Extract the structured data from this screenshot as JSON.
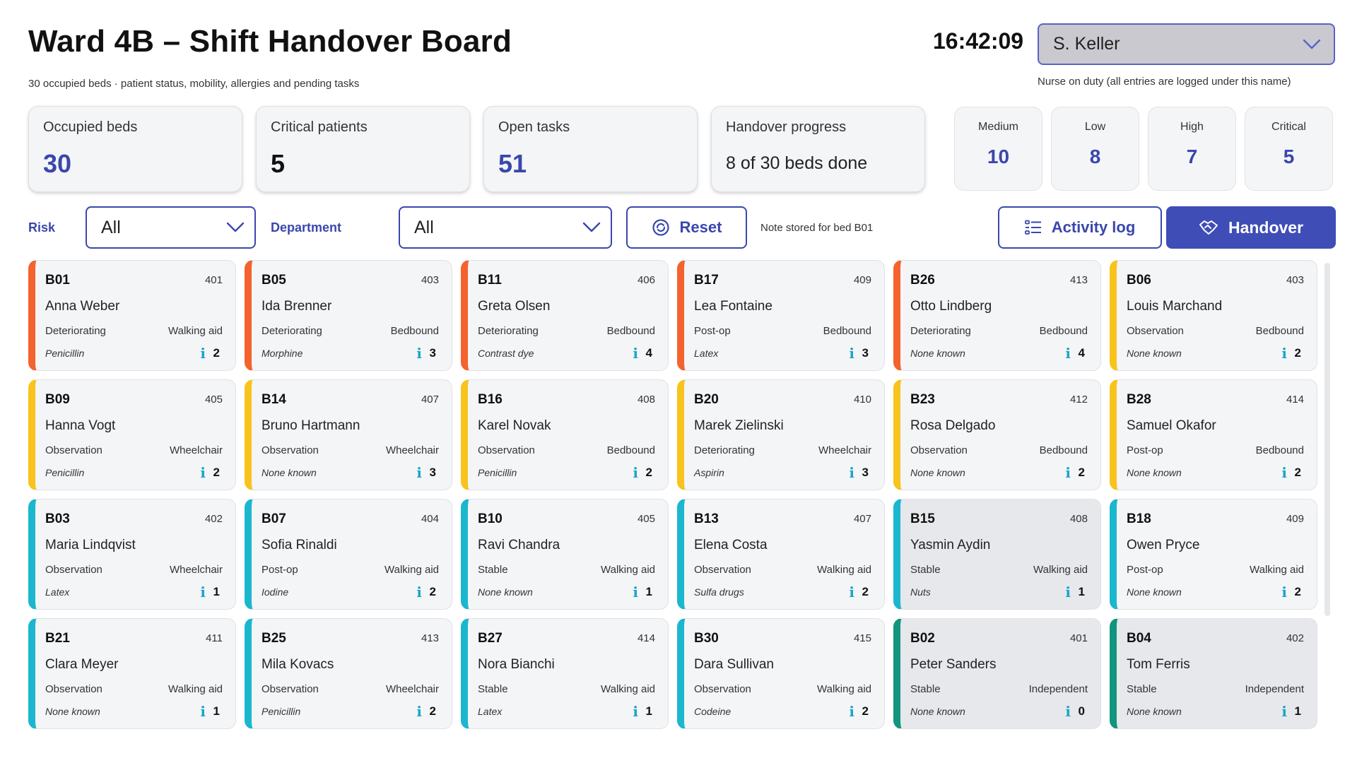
{
  "header": {
    "title": "Ward 4B – Shift Handover Board",
    "subtitle": "30 occupied beds · patient status, mobility, allergies and pending tasks",
    "clock": "16:42:09",
    "nurse_value": "S. Keller",
    "nurse_note": "Nurse on duty (all entries are logged under this name)"
  },
  "stats": [
    {
      "label": "Occupied beds",
      "value": "30"
    },
    {
      "label": "Critical patients",
      "value": "5"
    },
    {
      "label": "Open tasks",
      "value": "51"
    },
    {
      "label": "Handover progress",
      "value": "8 of 30 beds done"
    }
  ],
  "risk_counts": [
    {
      "label": "Medium",
      "value": "10"
    },
    {
      "label": "Low",
      "value": "8"
    },
    {
      "label": "High",
      "value": "7"
    },
    {
      "label": "Critical",
      "value": "5"
    }
  ],
  "filters": {
    "risk_label": "Risk",
    "risk_value": "All",
    "department_label": "Department",
    "department_value": "All",
    "reset_label": "Reset",
    "status_note": "Note stored for bed B01",
    "activity_label": "Activity log",
    "handover_label": "Handover"
  },
  "colors": {
    "accent": "#3f4db7",
    "critical": "#f4622e",
    "high": "#f8c31c",
    "medium": "#1ab7cf",
    "low": "#11957e",
    "info": "#1aa5c9"
  },
  "icons": {
    "nurse_select": "chevron-down-icon",
    "reset": "reset-icon",
    "activity": "list-icon",
    "handover": "handshake-icon",
    "task_info": "info-icon"
  },
  "beds": [
    {
      "code": "B01",
      "room": "401",
      "name": "Anna Weber",
      "status": "Deteriorating",
      "mobility": "Walking aid",
      "allergy": "Penicillin",
      "tasks": "2",
      "risk": "critical",
      "done": false
    },
    {
      "code": "B05",
      "room": "403",
      "name": "Ida Brenner",
      "status": "Deteriorating",
      "mobility": "Bedbound",
      "allergy": "Morphine",
      "tasks": "3",
      "risk": "critical",
      "done": false
    },
    {
      "code": "B11",
      "room": "406",
      "name": "Greta Olsen",
      "status": "Deteriorating",
      "mobility": "Bedbound",
      "allergy": "Contrast dye",
      "tasks": "4",
      "risk": "critical",
      "done": false
    },
    {
      "code": "B17",
      "room": "409",
      "name": "Lea Fontaine",
      "status": "Post-op",
      "mobility": "Bedbound",
      "allergy": "Latex",
      "tasks": "3",
      "risk": "critical",
      "done": false
    },
    {
      "code": "B26",
      "room": "413",
      "name": "Otto Lindberg",
      "status": "Deteriorating",
      "mobility": "Bedbound",
      "allergy": "None known",
      "tasks": "4",
      "risk": "critical",
      "done": false
    },
    {
      "code": "B06",
      "room": "403",
      "name": "Louis Marchand",
      "status": "Observation",
      "mobility": "Bedbound",
      "allergy": "None known",
      "tasks": "2",
      "risk": "high",
      "done": false
    },
    {
      "code": "B09",
      "room": "405",
      "name": "Hanna Vogt",
      "status": "Observation",
      "mobility": "Wheelchair",
      "allergy": "Penicillin",
      "tasks": "2",
      "risk": "high",
      "done": false
    },
    {
      "code": "B14",
      "room": "407",
      "name": "Bruno Hartmann",
      "status": "Observation",
      "mobility": "Wheelchair",
      "allergy": "None known",
      "tasks": "3",
      "risk": "high",
      "done": false
    },
    {
      "code": "B16",
      "room": "408",
      "name": "Karel Novak",
      "status": "Observation",
      "mobility": "Bedbound",
      "allergy": "Penicillin",
      "tasks": "2",
      "risk": "high",
      "done": false
    },
    {
      "code": "B20",
      "room": "410",
      "name": "Marek Zielinski",
      "status": "Deteriorating",
      "mobility": "Wheelchair",
      "allergy": "Aspirin",
      "tasks": "3",
      "risk": "high",
      "done": false
    },
    {
      "code": "B23",
      "room": "412",
      "name": "Rosa Delgado",
      "status": "Observation",
      "mobility": "Bedbound",
      "allergy": "None known",
      "tasks": "2",
      "risk": "high",
      "done": false
    },
    {
      "code": "B28",
      "room": "414",
      "name": "Samuel Okafor",
      "status": "Post-op",
      "mobility": "Bedbound",
      "allergy": "None known",
      "tasks": "2",
      "risk": "high",
      "done": false
    },
    {
      "code": "B03",
      "room": "402",
      "name": "Maria Lindqvist",
      "status": "Observation",
      "mobility": "Wheelchair",
      "allergy": "Latex",
      "tasks": "1",
      "risk": "medium",
      "done": false
    },
    {
      "code": "B07",
      "room": "404",
      "name": "Sofia Rinaldi",
      "status": "Post-op",
      "mobility": "Walking aid",
      "allergy": "Iodine",
      "tasks": "2",
      "risk": "medium",
      "done": false
    },
    {
      "code": "B10",
      "room": "405",
      "name": "Ravi Chandra",
      "status": "Stable",
      "mobility": "Walking aid",
      "allergy": "None known",
      "tasks": "1",
      "risk": "medium",
      "done": false
    },
    {
      "code": "B13",
      "room": "407",
      "name": "Elena Costa",
      "status": "Observation",
      "mobility": "Walking aid",
      "allergy": "Sulfa drugs",
      "tasks": "2",
      "risk": "medium",
      "done": false
    },
    {
      "code": "B15",
      "room": "408",
      "name": "Yasmin Aydin",
      "status": "Stable",
      "mobility": "Walking aid",
      "allergy": "Nuts",
      "tasks": "1",
      "risk": "medium",
      "done": true
    },
    {
      "code": "B18",
      "room": "409",
      "name": "Owen Pryce",
      "status": "Post-op",
      "mobility": "Walking aid",
      "allergy": "None known",
      "tasks": "2",
      "risk": "medium",
      "done": false
    },
    {
      "code": "B21",
      "room": "411",
      "name": "Clara Meyer",
      "status": "Observation",
      "mobility": "Walking aid",
      "allergy": "None known",
      "tasks": "1",
      "risk": "medium",
      "done": false
    },
    {
      "code": "B25",
      "room": "413",
      "name": "Mila Kovacs",
      "status": "Observation",
      "mobility": "Wheelchair",
      "allergy": "Penicillin",
      "tasks": "2",
      "risk": "medium",
      "done": false
    },
    {
      "code": "B27",
      "room": "414",
      "name": "Nora Bianchi",
      "status": "Stable",
      "mobility": "Walking aid",
      "allergy": "Latex",
      "tasks": "1",
      "risk": "medium",
      "done": false
    },
    {
      "code": "B30",
      "room": "415",
      "name": "Dara Sullivan",
      "status": "Observation",
      "mobility": "Walking aid",
      "allergy": "Codeine",
      "tasks": "2",
      "risk": "medium",
      "done": false
    },
    {
      "code": "B02",
      "room": "401",
      "name": "Peter Sanders",
      "status": "Stable",
      "mobility": "Independent",
      "allergy": "None known",
      "tasks": "0",
      "risk": "low",
      "done": true
    },
    {
      "code": "B04",
      "room": "402",
      "name": "Tom Ferris",
      "status": "Stable",
      "mobility": "Independent",
      "allergy": "None known",
      "tasks": "1",
      "risk": "low",
      "done": true
    }
  ]
}
